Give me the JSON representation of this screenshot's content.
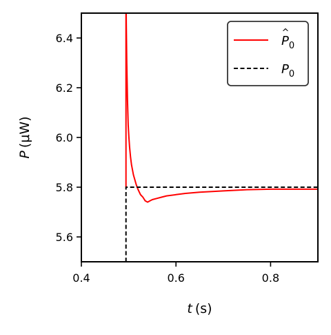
{
  "chart_data": {
    "type": "line",
    "xlabel": {
      "var": "t",
      "unit": "(s)"
    },
    "ylabel": {
      "var": "P",
      "unit": "(μW)"
    },
    "xlim": [
      0.4,
      0.9
    ],
    "ylim": [
      5.5,
      6.5
    ],
    "x_ticks": [
      0.4,
      0.6,
      0.8
    ],
    "x_tick_labels": [
      "0.4",
      "0.6",
      "0.8"
    ],
    "y_ticks": [
      5.6,
      5.8,
      6.0,
      6.2,
      6.4
    ],
    "y_tick_labels": [
      "5.6",
      "5.8",
      "6.0",
      "6.2",
      "6.4"
    ],
    "legend_position": "upper right",
    "series": [
      {
        "name": "P̂0",
        "legend_base": "P",
        "legend_accent": "^",
        "legend_sub": "0",
        "color": "#ff0000",
        "style": "solid",
        "x": [
          0.4943,
          0.4943,
          0.4945,
          0.495,
          0.496,
          0.4975,
          0.499,
          0.5005,
          0.502,
          0.504,
          0.506,
          0.508,
          0.51,
          0.513,
          0.516,
          0.52,
          0.525,
          0.53,
          0.535,
          0.54,
          0.545,
          0.55,
          0.56,
          0.57,
          0.58,
          0.6,
          0.62,
          0.65,
          0.7,
          0.75,
          0.8,
          0.85,
          0.9
        ],
        "y": [
          5.8,
          6.55,
          6.55,
          6.45,
          6.3,
          6.15,
          6.05,
          6.0,
          5.96,
          5.92,
          5.89,
          5.87,
          5.85,
          5.83,
          5.81,
          5.79,
          5.77,
          5.76,
          5.745,
          5.74,
          5.745,
          5.75,
          5.755,
          5.76,
          5.765,
          5.77,
          5.775,
          5.78,
          5.785,
          5.79,
          5.792,
          5.792,
          5.792
        ]
      },
      {
        "name": "P0",
        "legend_base": "P",
        "legend_sub": "0",
        "color": "#000000",
        "style": "dashed",
        "x": [
          0.4943,
          0.4943,
          0.9
        ],
        "y": [
          5.5,
          5.8,
          5.8
        ]
      }
    ]
  }
}
